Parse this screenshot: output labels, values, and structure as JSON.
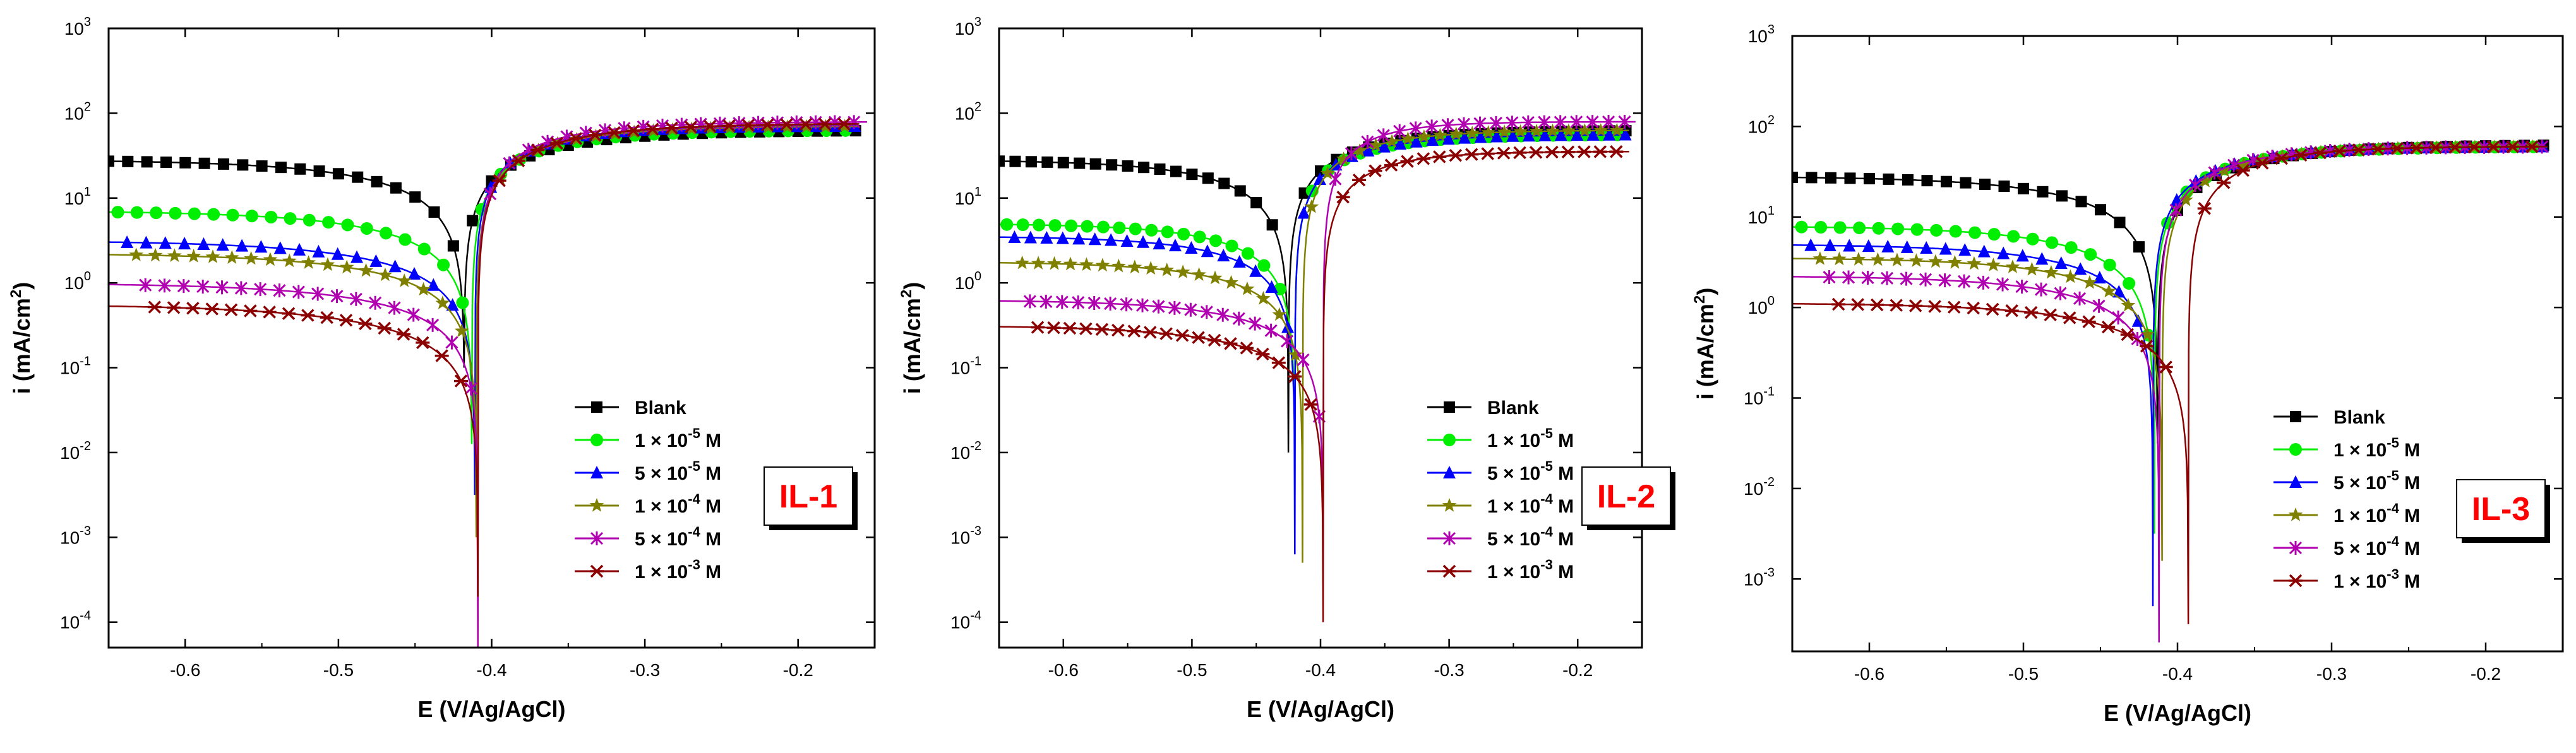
{
  "figure": {
    "panels": [
      "IL-1",
      "IL-2",
      "IL-3"
    ]
  },
  "colors": {
    "Blank": "#000000",
    "1e-5": "#00ee00",
    "5e-5": "#0000ff",
    "1e-4": "#808000",
    "5e-4": "#b000b0",
    "1e-3": "#8b0000"
  },
  "chart_data": [
    {
      "type": "line",
      "title": "IL-1",
      "xlabel": "E (V/Ag/AgCl)",
      "ylabel_main": "i (mA/cm",
      "ylabel_sup": "2",
      "ylabel_end": ")",
      "xlim": [
        -0.65,
        -0.15
      ],
      "ylim_exp": [
        -4.3,
        3
      ],
      "xticks": [
        -0.6,
        -0.5,
        -0.4,
        -0.3,
        -0.2
      ],
      "xtick_labels": [
        "-0.6",
        "-0.5",
        "-0.4",
        "-0.3",
        "-0.2"
      ],
      "ytick_exps": [
        -4,
        -3,
        -2,
        -1,
        0,
        1,
        2,
        3
      ],
      "ytick_exp_labels": [
        "-4",
        "-3",
        "-2",
        "-1",
        "0",
        "1",
        "2",
        "3"
      ],
      "ytick_base": "10",
      "legend_position": "lower-right",
      "series": [
        {
          "name": "Blank",
          "color_key": "Blank",
          "marker": "square",
          "label_base": "Blank",
          "label_exp": "",
          "label_unit": "",
          "ecorr": -0.418,
          "log_a_left": 1.45,
          "log_b_left": 1.4,
          "log_a_right": 1.8,
          "log_b_right": 1.6,
          "log_min": -1.0,
          "end_x": -0.16
        },
        {
          "name": "1 × 10-5 M",
          "color_key": "1e-5",
          "marker": "circle",
          "label_base": "1 × 10",
          "label_exp": "-5",
          "label_unit": " M",
          "ecorr": -0.413,
          "log_a_left": 0.85,
          "log_b_left": 1.4,
          "log_a_right": 1.8,
          "log_b_right": 1.9,
          "log_min": -1.9,
          "end_x": -0.16
        },
        {
          "name": "5 × 10-5 M",
          "color_key": "5e-5",
          "marker": "triangle",
          "label_base": "5 × 10",
          "label_exp": "-5",
          "label_unit": " M",
          "ecorr": -0.411,
          "log_a_left": 0.5,
          "log_b_left": 1.3,
          "log_a_right": 1.85,
          "log_b_right": 2.0,
          "log_min": -2.5,
          "end_x": -0.16
        },
        {
          "name": "1 × 10-4 M",
          "color_key": "1e-4",
          "marker": "star",
          "label_base": "1 × 10",
          "label_exp": "-4",
          "label_unit": " M",
          "ecorr": -0.41,
          "log_a_left": 0.35,
          "log_b_left": 1.35,
          "log_a_right": 1.85,
          "log_b_right": 1.8,
          "log_min": -3.0,
          "end_x": -0.16
        },
        {
          "name": "5 × 10-4 M",
          "color_key": "5e-4",
          "marker": "asterisk",
          "label_base": "5 × 10",
          "label_exp": "-4",
          "label_unit": " M",
          "ecorr": -0.409,
          "log_a_left": 0.0,
          "log_b_left": 1.3,
          "log_a_right": 1.9,
          "log_b_right": 1.9,
          "log_min": -4.3,
          "end_x": -0.155
        },
        {
          "name": "1 × 10-3 M",
          "color_key": "1e-3",
          "marker": "cross",
          "label_base": "1 × 10",
          "label_exp": "-3",
          "label_unit": " M",
          "ecorr": -0.409,
          "log_a_left": -0.25,
          "log_b_left": 1.2,
          "log_a_right": 1.88,
          "log_b_right": 1.7,
          "log_min": -3.7,
          "end_x": -0.16
        }
      ]
    },
    {
      "type": "line",
      "title": "IL-2",
      "xlabel": "E (V/Ag/AgCl)",
      "ylabel_main": "i (mA/cm",
      "ylabel_sup": "2",
      "ylabel_end": ")",
      "xlim": [
        -0.65,
        -0.15
      ],
      "ylim_exp": [
        -4.3,
        3
      ],
      "xticks": [
        -0.6,
        -0.5,
        -0.4,
        -0.3,
        -0.2
      ],
      "xtick_labels": [
        "-0.6",
        "-0.5",
        "-0.4",
        "-0.3",
        "-0.2"
      ],
      "ytick_exps": [
        -4,
        -3,
        -2,
        -1,
        0,
        1,
        2,
        3
      ],
      "ytick_exp_labels": [
        "-4",
        "-3",
        "-2",
        "-1",
        "0",
        "1",
        "2",
        "3"
      ],
      "ytick_base": "10",
      "legend_position": "lower-right",
      "series": [
        {
          "name": "Blank",
          "color_key": "Blank",
          "marker": "square",
          "label_base": "Blank",
          "label_exp": "",
          "label_unit": "",
          "ecorr": -0.425,
          "log_a_left": 1.45,
          "log_b_left": 1.5,
          "log_a_right": 1.8,
          "log_b_right": 1.6,
          "log_min": -2.0,
          "end_x": -0.16
        },
        {
          "name": "1 × 10-5 M",
          "color_key": "1e-5",
          "marker": "circle",
          "label_base": "1 × 10",
          "label_exp": "-5",
          "label_unit": " M",
          "ecorr": -0.42,
          "log_a_left": 0.7,
          "log_b_left": 1.6,
          "log_a_right": 1.75,
          "log_b_right": 1.8,
          "log_min": -2.5,
          "end_x": -0.16
        },
        {
          "name": "5 × 10-5 M",
          "color_key": "5e-5",
          "marker": "triangle",
          "label_base": "5 × 10",
          "label_exp": "-5",
          "label_unit": " M",
          "ecorr": -0.42,
          "log_a_left": 0.55,
          "log_b_left": 1.6,
          "log_a_right": 1.75,
          "log_b_right": 1.8,
          "log_min": -3.2,
          "end_x": -0.16
        },
        {
          "name": "1 × 10-4 M",
          "color_key": "1e-4",
          "marker": "star",
          "label_base": "1 × 10",
          "label_exp": "-4",
          "label_unit": " M",
          "ecorr": -0.414,
          "log_a_left": 0.25,
          "log_b_left": 1.5,
          "log_a_right": 1.8,
          "log_b_right": 1.9,
          "log_min": -3.3,
          "end_x": -0.16
        },
        {
          "name": "5 × 10-4 M",
          "color_key": "5e-4",
          "marker": "asterisk",
          "label_base": "5 × 10",
          "label_exp": "-4",
          "label_unit": " M",
          "ecorr": -0.398,
          "log_a_left": -0.2,
          "log_b_left": 1.4,
          "log_a_right": 1.9,
          "log_b_right": 2.5,
          "log_min": -3.2,
          "end_x": -0.155
        },
        {
          "name": "1 × 10-3 M",
          "color_key": "1e-3",
          "marker": "cross",
          "label_base": "1 × 10",
          "label_exp": "-3",
          "label_unit": " M",
          "ecorr": -0.398,
          "log_a_left": -0.5,
          "log_b_left": 1.3,
          "log_a_right": 1.55,
          "log_b_right": 2.2,
          "log_min": -4.0,
          "end_x": -0.16
        }
      ]
    },
    {
      "type": "line",
      "title": "IL-3",
      "xlabel": "E (V/Ag/AgCl)",
      "ylabel_main": "i (mA/cm",
      "ylabel_sup": "2",
      "ylabel_end": ")",
      "xlim": [
        -0.65,
        -0.15
      ],
      "ylim_exp": [
        -3.8,
        3
      ],
      "xticks": [
        -0.6,
        -0.5,
        -0.4,
        -0.3,
        -0.2
      ],
      "xtick_labels": [
        "-0.6",
        "-0.5",
        "-0.4",
        "-0.3",
        "-0.2"
      ],
      "ytick_exps": [
        -3,
        -2,
        -1,
        0,
        1,
        2,
        3
      ],
      "ytick_exp_labels": [
        "-3",
        "-2",
        "-1",
        "0",
        "1",
        "2",
        "3"
      ],
      "ytick_base": "10",
      "legend_position": "lower-right",
      "series": [
        {
          "name": "Blank",
          "color_key": "Blank",
          "marker": "square",
          "label_base": "Blank",
          "label_exp": "",
          "label_unit": "",
          "ecorr": -0.413,
          "log_a_left": 1.45,
          "log_b_left": 1.5,
          "log_a_right": 1.8,
          "log_b_right": 1.6,
          "log_min": -1.5,
          "end_x": -0.16
        },
        {
          "name": "1 × 10-5 M",
          "color_key": "1e-5",
          "marker": "circle",
          "label_base": "1 × 10",
          "label_exp": "-5",
          "label_unit": " M",
          "ecorr": -0.415,
          "log_a_left": 0.9,
          "log_b_left": 1.6,
          "log_a_right": 1.78,
          "log_b_right": 1.8,
          "log_min": -2.5,
          "end_x": -0.16
        },
        {
          "name": "5 × 10-5 M",
          "color_key": "5e-5",
          "marker": "triangle",
          "label_base": "5 × 10",
          "label_exp": "-5",
          "label_unit": " M",
          "ecorr": -0.416,
          "log_a_left": 0.7,
          "log_b_left": 1.6,
          "log_a_right": 1.78,
          "log_b_right": 1.9,
          "log_min": -3.3,
          "end_x": -0.16
        },
        {
          "name": "1 × 10-4 M",
          "color_key": "1e-4",
          "marker": "star",
          "label_base": "1 × 10",
          "label_exp": "-4",
          "label_unit": " M",
          "ecorr": -0.41,
          "log_a_left": 0.55,
          "log_b_left": 1.6,
          "log_a_right": 1.78,
          "log_b_right": 1.9,
          "log_min": -2.8,
          "end_x": -0.16
        },
        {
          "name": "5 × 10-4 M",
          "color_key": "5e-4",
          "marker": "asterisk",
          "label_base": "5 × 10",
          "label_exp": "-4",
          "label_unit": " M",
          "ecorr": -0.412,
          "log_a_left": 0.35,
          "log_b_left": 1.6,
          "log_a_right": 1.78,
          "log_b_right": 2.0,
          "log_min": -3.7,
          "end_x": -0.16
        },
        {
          "name": "1 × 10-3 M",
          "color_key": "1e-3",
          "marker": "cross",
          "label_base": "1 × 10",
          "label_exp": "-3",
          "label_unit": " M",
          "ecorr": -0.393,
          "log_a_left": 0.05,
          "log_b_left": 1.5,
          "log_a_right": 1.78,
          "log_b_right": 2.2,
          "log_min": -3.5,
          "end_x": -0.16
        }
      ]
    }
  ]
}
